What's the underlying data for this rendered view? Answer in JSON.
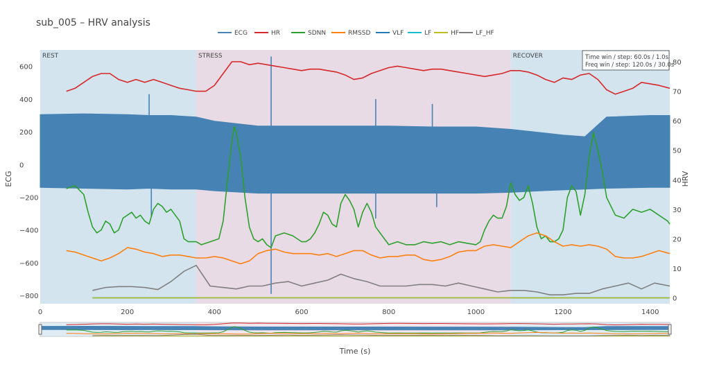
{
  "chart_data": {
    "type": "line",
    "title": "sub_005 – HRV analysis",
    "xlabel": "Time (s)",
    "ylabel_left": "ECG",
    "ylabel_right": "HRV",
    "xlim": [
      0,
      1445
    ],
    "ylim_left": [
      -850,
      700
    ],
    "ylim_right": [
      -2,
      84
    ],
    "x_ticks": [
      "0",
      "200",
      "400",
      "600",
      "800",
      "1000",
      "1200",
      "1400"
    ],
    "x_tick_values": [
      0,
      200,
      400,
      600,
      800,
      1000,
      1200,
      1400
    ],
    "y_left_ticks": [
      "600",
      "400",
      "200",
      "0",
      "−200",
      "−400",
      "−600",
      "−800"
    ],
    "y_left_tick_values": [
      600,
      400,
      200,
      0,
      -200,
      -400,
      -600,
      -800
    ],
    "y_right_ticks": [
      "80",
      "70",
      "60",
      "50",
      "40",
      "30",
      "20",
      "10",
      "0"
    ],
    "y_right_tick_values": [
      80,
      70,
      60,
      50,
      40,
      30,
      20,
      10,
      0
    ],
    "phases": [
      {
        "label": "REST",
        "start": 0,
        "end": 358,
        "color": "#d3e4ef"
      },
      {
        "label": "STRESS",
        "start": 358,
        "end": 1080,
        "color": "#e9dbe5"
      },
      {
        "label": "RECOVER",
        "start": 1080,
        "end": 1445,
        "color": "#d3e4ef"
      }
    ],
    "annotation": [
      "Time win / step: 60.0s / 1.0s",
      "Freq win / step: 120.0s / 30.0s"
    ],
    "legend": [
      "ECG",
      "HR",
      "SDNN",
      "RMSSD",
      "VLF",
      "LF",
      "HF",
      "LF_HF"
    ],
    "legend_position": "top-center",
    "series": [
      {
        "name": "ECG",
        "color": "#4682b4",
        "axis": "left",
        "kind": "band",
        "x": [
          0,
          100,
          200,
          250,
          300,
          358,
          400,
          500,
          600,
          700,
          800,
          900,
          1000,
          1080,
          1150,
          1200,
          1250,
          1300,
          1400,
          1445
        ],
        "upper": [
          305,
          310,
          305,
          300,
          300,
          290,
          265,
          235,
          235,
          235,
          235,
          230,
          230,
          215,
          195,
          180,
          170,
          290,
          300,
          300
        ],
        "lower": [
          -140,
          -145,
          -150,
          -145,
          -150,
          -150,
          -160,
          -175,
          -175,
          -175,
          -175,
          -175,
          -175,
          -170,
          -160,
          -155,
          -150,
          -145,
          -140,
          -140
        ],
        "spikes": [
          {
            "x": 250,
            "value": 430
          },
          {
            "x": 255,
            "value": -320
          },
          {
            "x": 530,
            "value": 660
          },
          {
            "x": 530,
            "value": -790
          },
          {
            "x": 770,
            "value": 400
          },
          {
            "x": 770,
            "value": -330
          },
          {
            "x": 900,
            "value": 370
          },
          {
            "x": 910,
            "value": -260
          }
        ]
      },
      {
        "name": "HR",
        "color": "#d62728",
        "axis": "right",
        "x": [
          60,
          80,
          100,
          120,
          140,
          160,
          180,
          200,
          220,
          240,
          260,
          280,
          300,
          320,
          340,
          358,
          380,
          400,
          420,
          440,
          460,
          480,
          500,
          520,
          540,
          560,
          580,
          600,
          620,
          640,
          660,
          680,
          700,
          720,
          740,
          760,
          780,
          800,
          820,
          840,
          860,
          880,
          900,
          920,
          940,
          960,
          980,
          1000,
          1020,
          1040,
          1060,
          1080,
          1100,
          1120,
          1140,
          1160,
          1180,
          1200,
          1220,
          1240,
          1260,
          1280,
          1300,
          1320,
          1340,
          1360,
          1380,
          1400,
          1420,
          1445
        ],
        "values": [
          70,
          71,
          73,
          75,
          76,
          76,
          74,
          73,
          74,
          73,
          74,
          73,
          72,
          71,
          70.5,
          70,
          70,
          72,
          76,
          80,
          80,
          79,
          79.5,
          79,
          78.5,
          78,
          77.5,
          77,
          77.5,
          77.5,
          77,
          76.5,
          75.5,
          74,
          74.5,
          76,
          77,
          78,
          78.5,
          78,
          77.5,
          77,
          77.5,
          77.5,
          77,
          76.5,
          76,
          75.5,
          75,
          75.5,
          76,
          77,
          77,
          76.5,
          75.5,
          74,
          73,
          74.5,
          74,
          75.5,
          76,
          74,
          70.5,
          69,
          70,
          71,
          73,
          72.5,
          72,
          71
        ]
      },
      {
        "name": "SDNN",
        "color": "#2ca02c",
        "axis": "right",
        "x": [
          60,
          80,
          100,
          110,
          120,
          130,
          140,
          150,
          160,
          170,
          180,
          190,
          200,
          210,
          220,
          230,
          240,
          250,
          260,
          270,
          280,
          290,
          300,
          310,
          320,
          330,
          340,
          350,
          358,
          370,
          390,
          410,
          420,
          430,
          440,
          445,
          450,
          460,
          470,
          480,
          490,
          500,
          510,
          520,
          530,
          540,
          560,
          580,
          600,
          610,
          620,
          630,
          640,
          650,
          660,
          670,
          680,
          690,
          700,
          710,
          720,
          730,
          740,
          750,
          760,
          770,
          780,
          790,
          800,
          820,
          840,
          860,
          880,
          900,
          920,
          940,
          960,
          980,
          1000,
          1010,
          1020,
          1030,
          1040,
          1050,
          1060,
          1070,
          1080,
          1090,
          1100,
          1110,
          1120,
          1130,
          1140,
          1150,
          1160,
          1170,
          1180,
          1190,
          1200,
          1210,
          1220,
          1230,
          1240,
          1250,
          1260,
          1270,
          1280,
          1290,
          1300,
          1320,
          1340,
          1360,
          1380,
          1400,
          1420,
          1440,
          1445
        ],
        "values": [
          37,
          38,
          35,
          29,
          24,
          22,
          23,
          26,
          25,
          22,
          23,
          27,
          28,
          29,
          27,
          28,
          26,
          25,
          30,
          32,
          31,
          29,
          30,
          28,
          26,
          20,
          19,
          19,
          19,
          18,
          19,
          20,
          26,
          40,
          53,
          58,
          56,
          48,
          34,
          24,
          20,
          19,
          20,
          18,
          17,
          21,
          22,
          21,
          19,
          19,
          20,
          22,
          25,
          29,
          28,
          25,
          24,
          32,
          35,
          33,
          30,
          24,
          29,
          32,
          29,
          24,
          22,
          20,
          18,
          19,
          18,
          18,
          19,
          18.5,
          19,
          18,
          19,
          18.5,
          18,
          19,
          23,
          26,
          28,
          27,
          27,
          31,
          39,
          35,
          33,
          34,
          38,
          32,
          24,
          20,
          21,
          19,
          19,
          20,
          23,
          34,
          38,
          36,
          28,
          35,
          48,
          56,
          50,
          43,
          34,
          28,
          27,
          30,
          29,
          30,
          28,
          26,
          25
        ]
      },
      {
        "name": "RMSSD",
        "color": "#ff7f0e",
        "axis": "right",
        "x": [
          60,
          80,
          100,
          120,
          140,
          160,
          180,
          200,
          220,
          240,
          260,
          280,
          300,
          320,
          340,
          358,
          380,
          400,
          420,
          440,
          460,
          480,
          500,
          520,
          540,
          560,
          580,
          600,
          620,
          640,
          660,
          680,
          700,
          720,
          740,
          760,
          780,
          800,
          820,
          840,
          860,
          880,
          900,
          920,
          940,
          960,
          980,
          1000,
          1020,
          1040,
          1060,
          1080,
          1100,
          1120,
          1140,
          1160,
          1180,
          1200,
          1220,
          1240,
          1260,
          1280,
          1300,
          1320,
          1340,
          1360,
          1380,
          1400,
          1420,
          1445
        ],
        "values": [
          16,
          15.5,
          14.5,
          13.5,
          12.5,
          13.5,
          15,
          17,
          16.5,
          15.5,
          15,
          14,
          14.5,
          14.5,
          14,
          13.5,
          13.5,
          14,
          13.5,
          12.5,
          11.5,
          12.5,
          15,
          16,
          16.5,
          15.5,
          15,
          15,
          15,
          14.5,
          15,
          14,
          15,
          16,
          16,
          14.5,
          13.5,
          14,
          14,
          14.5,
          14.5,
          13,
          12.5,
          13,
          14,
          15.5,
          16,
          16,
          17.5,
          18,
          17.5,
          17,
          19,
          21,
          22,
          21,
          19,
          17.5,
          18,
          17.5,
          18,
          17.5,
          16.5,
          14,
          13.5,
          13.5,
          14,
          15,
          16,
          15
        ]
      },
      {
        "name": "VLF",
        "color": "#1f77b4",
        "axis": "right",
        "x": [
          120,
          1445
        ],
        "values": [
          0,
          0
        ]
      },
      {
        "name": "LF",
        "color": "#17becf",
        "axis": "right",
        "x": [
          120,
          1445
        ],
        "values": [
          0,
          0
        ]
      },
      {
        "name": "HF",
        "color": "#bcbd22",
        "axis": "right",
        "x": [
          120,
          1445
        ],
        "values": [
          0,
          0
        ]
      },
      {
        "name": "LF_HF",
        "color": "#7f7f7f",
        "axis": "right",
        "x": [
          120,
          150,
          180,
          210,
          240,
          270,
          300,
          330,
          358,
          390,
          420,
          450,
          480,
          510,
          540,
          570,
          600,
          630,
          660,
          690,
          720,
          750,
          780,
          810,
          840,
          870,
          900,
          930,
          960,
          990,
          1020,
          1050,
          1080,
          1110,
          1140,
          1170,
          1200,
          1230,
          1260,
          1290,
          1320,
          1350,
          1380,
          1410,
          1445
        ],
        "values": [
          2.5,
          3.5,
          3.8,
          3.8,
          3.5,
          2.8,
          5.5,
          9,
          11,
          4,
          3.5,
          3,
          4,
          4,
          5,
          5.5,
          4,
          5,
          6,
          8,
          6.5,
          5.5,
          4,
          4,
          4,
          4.5,
          4.5,
          4,
          5,
          4,
          3,
          2,
          2.5,
          2.5,
          2,
          1,
          1,
          1.5,
          1.5,
          3,
          4,
          5,
          3,
          5,
          4
        ]
      }
    ]
  }
}
